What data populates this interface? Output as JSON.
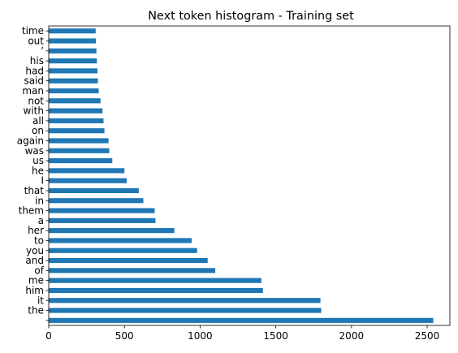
{
  "chart_data": {
    "type": "bar",
    "orientation": "horizontal",
    "title": "Next token histogram - Training set",
    "xlabel": "",
    "ylabel": "",
    "xlim": [
      0,
      2650
    ],
    "x_ticks": [
      0,
      500,
      1000,
      1500,
      2000,
      2500
    ],
    "grid": false,
    "legend": "none",
    "bar_color": "#1f77b4",
    "categories": [
      "time",
      "out",
      "’",
      "his",
      "had",
      "said",
      "man",
      "not",
      "with",
      "all",
      "on",
      "again",
      "was",
      "us",
      "he",
      "I",
      "that",
      "in",
      "them",
      "a",
      "her",
      "to",
      "you",
      "and",
      "of",
      "me",
      "him",
      "it",
      "the",
      ""
    ],
    "values": [
      310,
      312,
      315,
      318,
      322,
      325,
      330,
      342,
      355,
      362,
      368,
      395,
      400,
      420,
      500,
      515,
      595,
      625,
      700,
      705,
      830,
      945,
      980,
      1050,
      1100,
      1405,
      1415,
      1795,
      1800,
      2540
    ]
  }
}
